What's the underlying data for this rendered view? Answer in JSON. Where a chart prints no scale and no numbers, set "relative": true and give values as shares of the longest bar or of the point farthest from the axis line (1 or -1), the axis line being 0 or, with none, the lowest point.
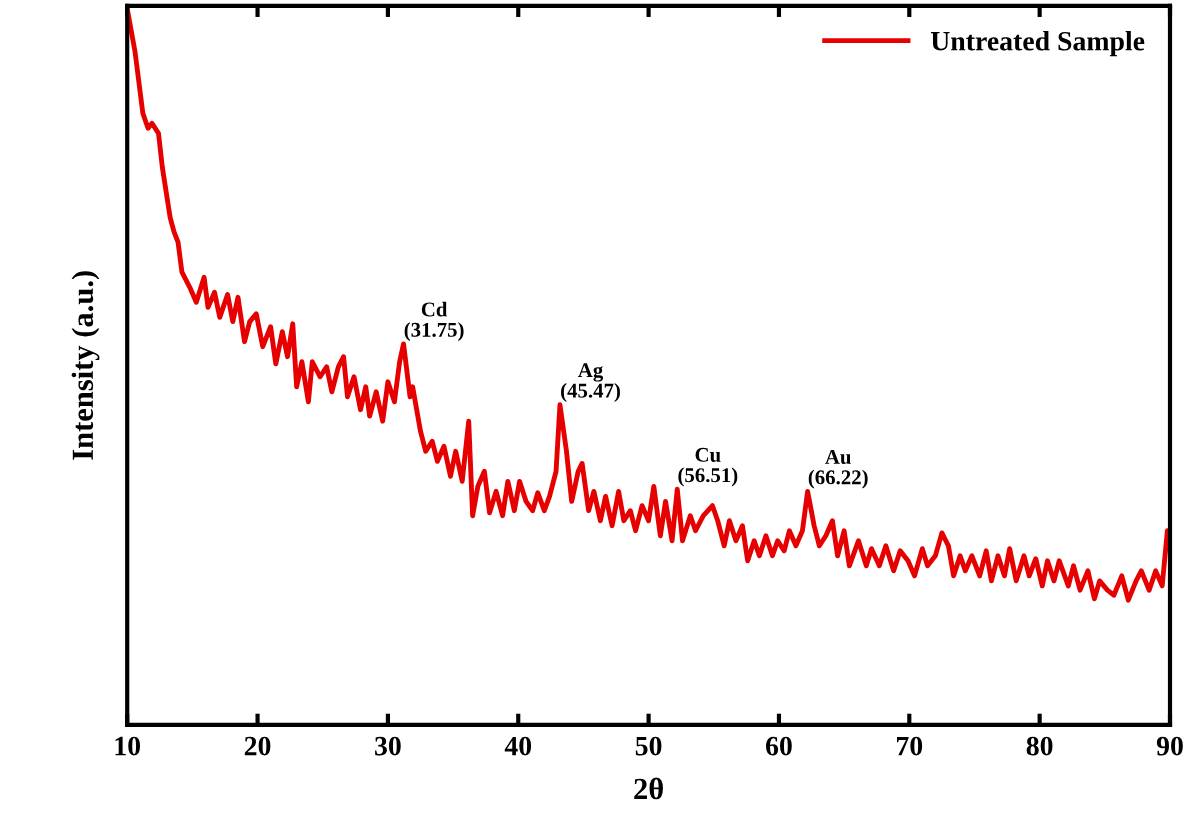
{
  "chart_data": {
    "type": "line",
    "xlabel": "2θ",
    "ylabel": "Intensity (a.u.)",
    "relative": true,
    "xlim": [
      10,
      90
    ],
    "xticks": [
      10,
      20,
      30,
      40,
      50,
      60,
      70,
      80,
      90
    ],
    "legend": "top right",
    "grid": false,
    "marker": "none",
    "line_style": "solid",
    "annotations": [
      {
        "text": "Cd\n(31.75)",
        "x": 31.2,
        "y": 0.532
      },
      {
        "text": "Ag\n(45.47)",
        "x": 43.2,
        "y": 0.447
      },
      {
        "text": "Cu\n(56.51)",
        "x": 52.2,
        "y": 0.329
      },
      {
        "text": "Au\n(66.22)",
        "x": 62.2,
        "y": 0.326
      }
    ],
    "series": [
      {
        "name": "Untreated Sample",
        "color": "#e60000",
        "x": [
          10.0,
          10.6,
          11.2,
          11.6,
          11.9,
          12.4,
          12.7,
          13.0,
          13.3,
          13.6,
          13.9,
          14.2,
          14.8,
          15.3,
          15.9,
          16.2,
          16.7,
          17.1,
          17.7,
          18.1,
          18.5,
          19.0,
          19.4,
          19.9,
          20.4,
          21.0,
          21.4,
          21.9,
          22.3,
          22.7,
          23.0,
          23.4,
          23.9,
          24.2,
          24.8,
          25.3,
          25.7,
          26.2,
          26.6,
          26.9,
          27.4,
          27.9,
          28.3,
          28.6,
          29.1,
          29.6,
          30.0,
          30.5,
          30.9,
          31.2,
          31.7,
          31.9,
          32.5,
          32.9,
          33.4,
          33.8,
          34.3,
          34.8,
          35.2,
          35.7,
          36.2,
          36.5,
          36.9,
          37.4,
          37.8,
          38.3,
          38.8,
          39.2,
          39.7,
          40.1,
          40.6,
          41.1,
          41.5,
          42.0,
          42.4,
          42.9,
          43.2,
          43.7,
          44.1,
          44.6,
          44.9,
          45.4,
          45.8,
          46.3,
          46.7,
          47.2,
          47.7,
          48.1,
          48.6,
          49.0,
          49.5,
          50.0,
          50.4,
          50.9,
          51.3,
          51.8,
          52.2,
          52.6,
          53.2,
          53.6,
          54.2,
          54.9,
          55.3,
          55.8,
          56.2,
          56.7,
          57.2,
          57.6,
          58.1,
          58.5,
          59.0,
          59.5,
          59.9,
          60.4,
          60.8,
          61.3,
          61.8,
          62.2,
          62.7,
          63.1,
          63.6,
          64.1,
          64.5,
          65.0,
          65.4,
          66.1,
          66.7,
          67.1,
          67.7,
          68.2,
          68.8,
          69.3,
          69.9,
          70.4,
          71.0,
          71.4,
          72.0,
          72.5,
          73.0,
          73.4,
          73.9,
          74.3,
          74.8,
          75.4,
          75.9,
          76.3,
          76.8,
          77.3,
          77.7,
          78.2,
          78.8,
          79.2,
          79.7,
          80.2,
          80.6,
          81.1,
          81.5,
          82.2,
          82.6,
          83.1,
          83.7,
          84.2,
          84.6,
          85.2,
          85.7,
          86.3,
          86.8,
          87.4,
          87.8,
          88.4,
          88.9,
          89.4,
          89.8
        ],
        "values": [
          1.0,
          0.94,
          0.854,
          0.833,
          0.84,
          0.826,
          0.778,
          0.743,
          0.708,
          0.688,
          0.674,
          0.632,
          0.611,
          0.59,
          0.625,
          0.583,
          0.604,
          0.569,
          0.601,
          0.563,
          0.597,
          0.535,
          0.563,
          0.574,
          0.528,
          0.556,
          0.504,
          0.549,
          0.514,
          0.56,
          0.472,
          0.507,
          0.451,
          0.507,
          0.486,
          0.5,
          0.465,
          0.5,
          0.514,
          0.458,
          0.486,
          0.44,
          0.472,
          0.431,
          0.465,
          0.424,
          0.479,
          0.451,
          0.507,
          0.532,
          0.458,
          0.472,
          0.41,
          0.382,
          0.396,
          0.368,
          0.389,
          0.347,
          0.382,
          0.34,
          0.424,
          0.292,
          0.333,
          0.354,
          0.296,
          0.326,
          0.292,
          0.34,
          0.299,
          0.34,
          0.312,
          0.299,
          0.324,
          0.299,
          0.319,
          0.354,
          0.447,
          0.382,
          0.312,
          0.354,
          0.365,
          0.299,
          0.326,
          0.285,
          0.319,
          0.278,
          0.326,
          0.285,
          0.299,
          0.271,
          0.306,
          0.285,
          0.333,
          0.264,
          0.312,
          0.257,
          0.329,
          0.257,
          0.292,
          0.271,
          0.292,
          0.306,
          0.285,
          0.25,
          0.285,
          0.257,
          0.278,
          0.229,
          0.257,
          0.236,
          0.264,
          0.236,
          0.257,
          0.243,
          0.271,
          0.25,
          0.271,
          0.326,
          0.278,
          0.25,
          0.264,
          0.285,
          0.236,
          0.271,
          0.222,
          0.257,
          0.222,
          0.246,
          0.222,
          0.25,
          0.215,
          0.243,
          0.229,
          0.208,
          0.246,
          0.222,
          0.236,
          0.268,
          0.25,
          0.208,
          0.236,
          0.215,
          0.236,
          0.208,
          0.243,
          0.201,
          0.236,
          0.208,
          0.246,
          0.201,
          0.236,
          0.208,
          0.232,
          0.194,
          0.229,
          0.201,
          0.229,
          0.194,
          0.222,
          0.188,
          0.215,
          0.176,
          0.201,
          0.188,
          0.181,
          0.208,
          0.174,
          0.201,
          0.215,
          0.188,
          0.215,
          0.194,
          0.271
        ]
      }
    ]
  }
}
